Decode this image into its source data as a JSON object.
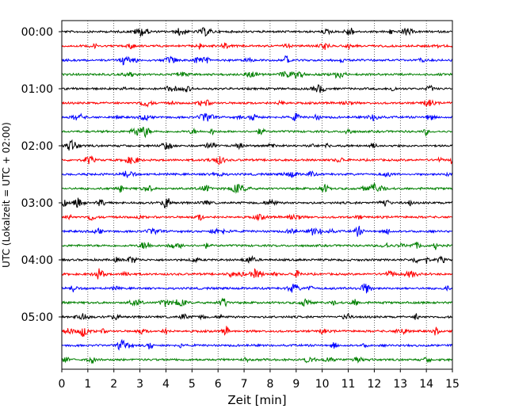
{
  "chart_data": {
    "type": "line",
    "title": "",
    "xlabel": "Zeit  [min]",
    "ylabel": "UTC (Lokalzeit = UTC + 02:00)",
    "xlim": [
      0,
      15
    ],
    "x_ticks": [
      "0",
      "1",
      "2",
      "3",
      "4",
      "5",
      "6",
      "7",
      "8",
      "9",
      "10",
      "11",
      "12",
      "13",
      "14",
      "15"
    ],
    "y_ticks": [
      "00:00",
      "01:00",
      "02:00",
      "03:00",
      "04:00",
      "05:00"
    ],
    "grid": "vertical dotted",
    "trace_interval_minutes": 15,
    "trace_colors": [
      "#000000",
      "#ff0000",
      "#0000ff",
      "#008000"
    ],
    "traces": [
      "00:00",
      "00:15",
      "00:30",
      "00:45",
      "01:00",
      "01:15",
      "01:30",
      "01:45",
      "02:00",
      "02:15",
      "02:30",
      "02:45",
      "03:00",
      "03:15",
      "03:30",
      "03:45",
      "04:00",
      "04:15",
      "04:30",
      "04:45",
      "05:00",
      "05:15",
      "05:30",
      "05:45"
    ]
  }
}
